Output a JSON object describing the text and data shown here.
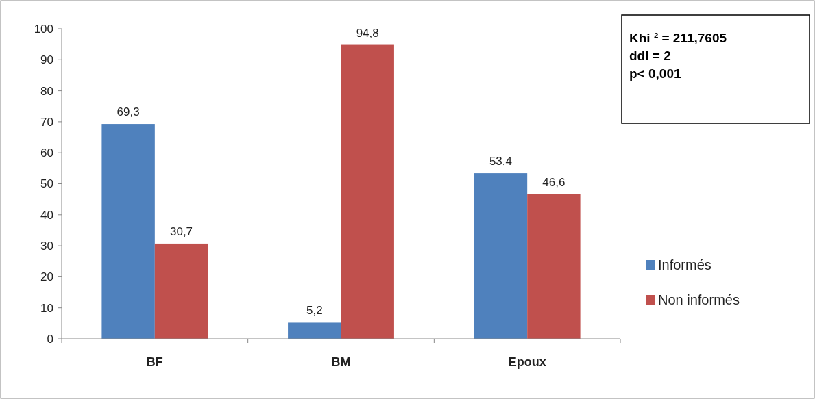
{
  "chart_data": {
    "type": "bar",
    "categories": [
      "BF",
      "BM",
      "Epoux"
    ],
    "series": [
      {
        "name": "Informés",
        "color": "#4f81bd",
        "values": [
          69.3,
          5.2,
          53.4
        ],
        "value_labels": [
          "69,3",
          "5,2",
          "53,4"
        ]
      },
      {
        "name": "Non informés",
        "color": "#c0504d",
        "values": [
          30.7,
          94.8,
          46.6
        ],
        "value_labels": [
          "30,7",
          "94,8",
          "46,6"
        ]
      }
    ],
    "ylim": [
      0,
      100
    ],
    "yticks": [
      0,
      10,
      20,
      30,
      40,
      50,
      60,
      70,
      80,
      90,
      100
    ],
    "grid": false,
    "legend": "right",
    "annotations": [
      "Khi ² = 211,7605",
      "ddl = 2",
      "p< 0,001"
    ]
  }
}
